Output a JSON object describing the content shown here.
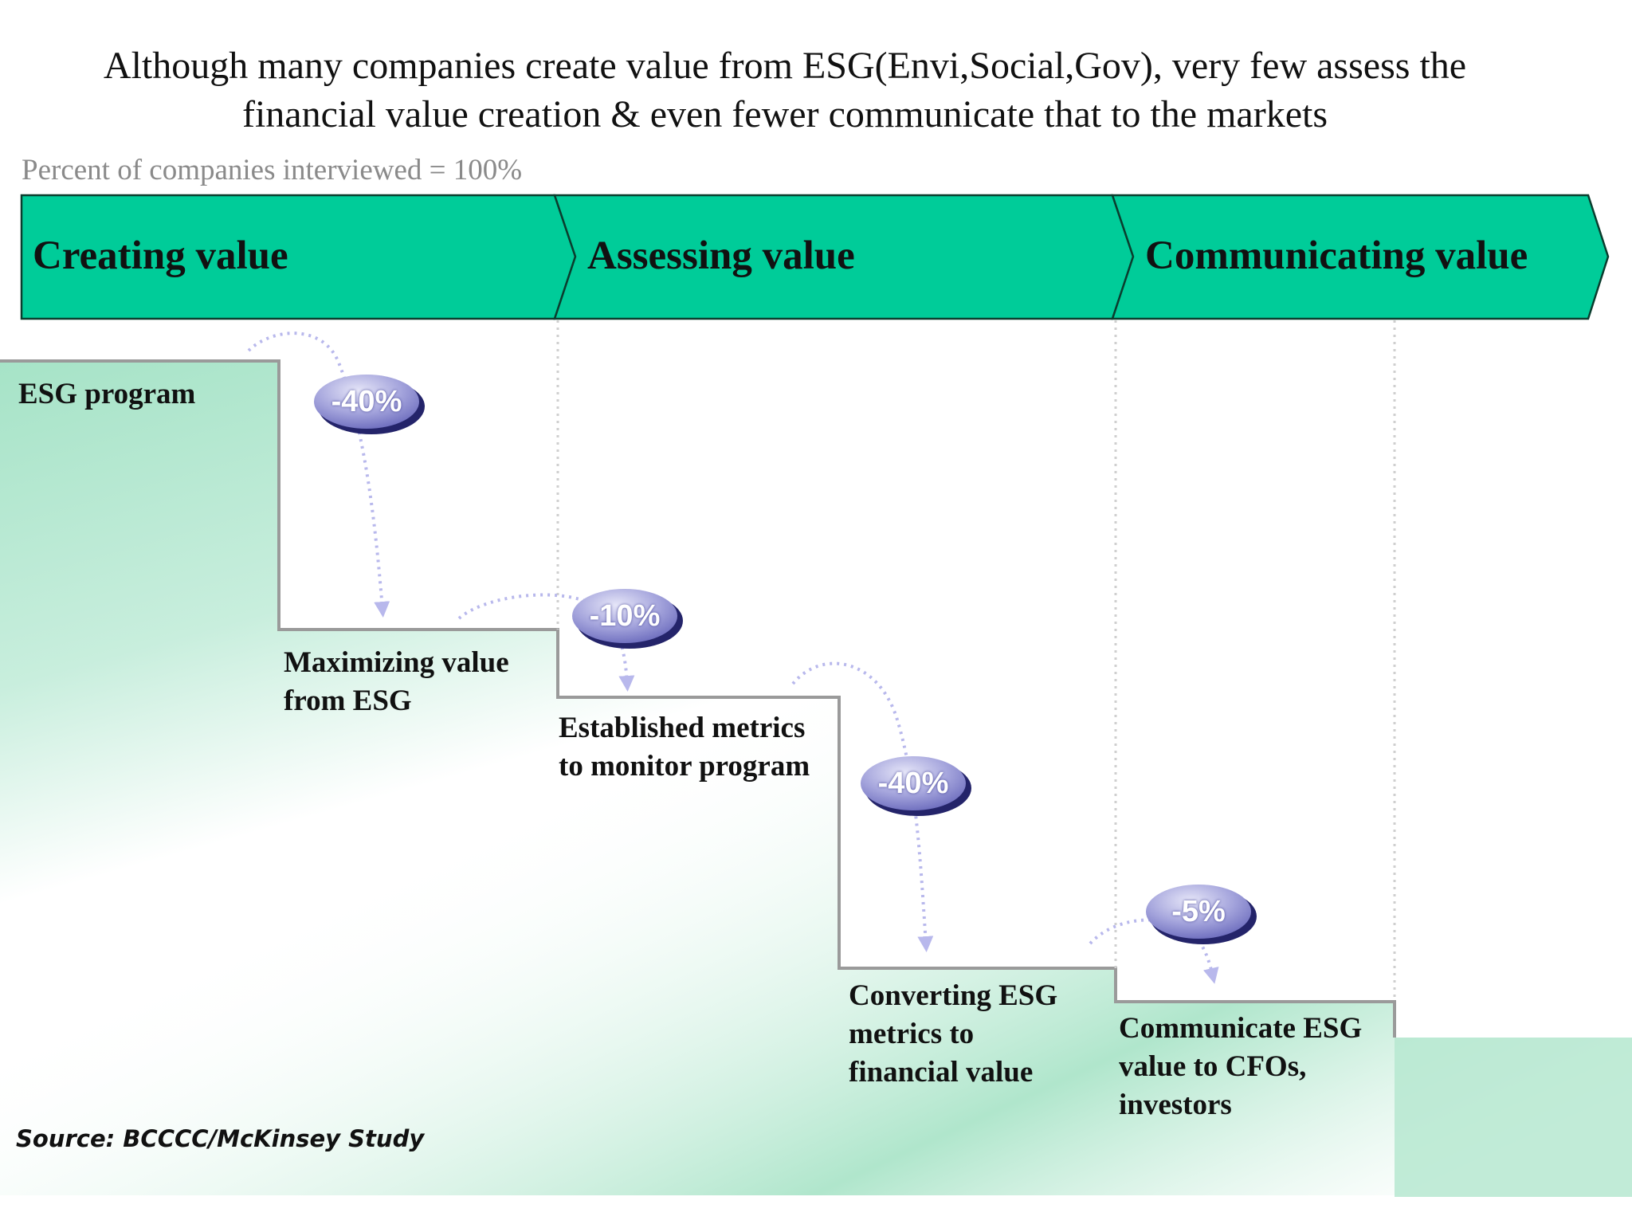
{
  "title": {
    "line1": "Although many companies create value from ESG(Envi,Social,Gov), very few assess the",
    "line2": "financial value creation & even fewer communicate that to the markets"
  },
  "subtitle": "Percent of companies interviewed = 100%",
  "phases": [
    {
      "label": "Creating value"
    },
    {
      "label": "Assessing value"
    },
    {
      "label": "Communicating value"
    }
  ],
  "steps": [
    {
      "lines": [
        "ESG program"
      ]
    },
    {
      "lines": [
        "Maximizing value",
        "from ESG"
      ]
    },
    {
      "lines": [
        "Established metrics",
        "to monitor program"
      ]
    },
    {
      "lines": [
        "Converting ESG",
        "metrics to",
        "financial value"
      ]
    },
    {
      "lines": [
        "Communicate ESG",
        "value to CFOs,",
        "investors"
      ]
    }
  ],
  "drops": [
    {
      "label": "-40%",
      "value": -40
    },
    {
      "label": "-10%",
      "value": -10
    },
    {
      "label": "-40%",
      "value": -40
    },
    {
      "label": "-5%",
      "value": -5
    }
  ],
  "source": "Source: BCCCC/McKinsey Study",
  "colors": {
    "banner": "#00cc99",
    "banner_border": "#0a3d2e",
    "stair_fill": "#b2e6cf",
    "stair_edge": "#999999",
    "badge_light": "#d8d8f2",
    "badge_mid": "#8a8ad0",
    "badge_dark": "#24246a",
    "arrow": "#c0c0ee",
    "guide": "#d0d0d0"
  },
  "icons": {
    "badge": "ellipse-badge",
    "flow_arrow": "dotted-curved-arrow"
  }
}
